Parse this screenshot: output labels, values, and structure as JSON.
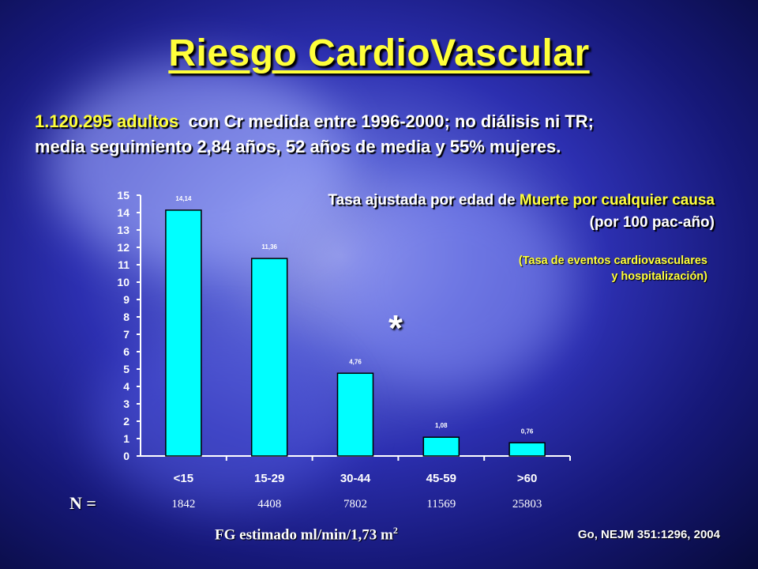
{
  "slide": {
    "title": "Riesgo CardioVascular",
    "intro_highlight": "1.120.295 adultos",
    "intro_rest": "con Cr medida entre 1996-2000; no diálisis ni TR;",
    "intro_line2": "media seguimiento 2,84 años, 52 años de media y 55% mujeres.",
    "note_line1": "(Tasa de eventos cardiovasculares",
    "note_line2": "y hospitalización)",
    "asterisk": "*",
    "n_label": "N =",
    "citation": "Go, NEJM 351:1296, 2004"
  },
  "chart_data": {
    "type": "bar",
    "title_prefix": "Tasa ajustada por edad de ",
    "title_highlight": "Muerte por cualquier causa",
    "title_line2": "(por 100 pac-año)",
    "xlabel_main": "FG estimado ml/min/1,73 m",
    "xlabel_sup": "2",
    "ylabel": "",
    "ylim": [
      0,
      15
    ],
    "yticks": [
      0,
      1,
      2,
      3,
      4,
      5,
      6,
      7,
      8,
      9,
      10,
      11,
      12,
      13,
      14,
      15
    ],
    "categories": [
      "<15",
      "15-29",
      "30-44",
      "45-59",
      ">60"
    ],
    "values": [
      14.14,
      11.36,
      4.76,
      1.08,
      0.76
    ],
    "value_labels": [
      "14,14",
      "11,36",
      "4,76",
      "1,08",
      "0,76"
    ],
    "n": [
      "1842",
      "4408",
      "7802",
      "11569",
      "25803"
    ],
    "bar_color": "#00ffff",
    "grid": false
  }
}
